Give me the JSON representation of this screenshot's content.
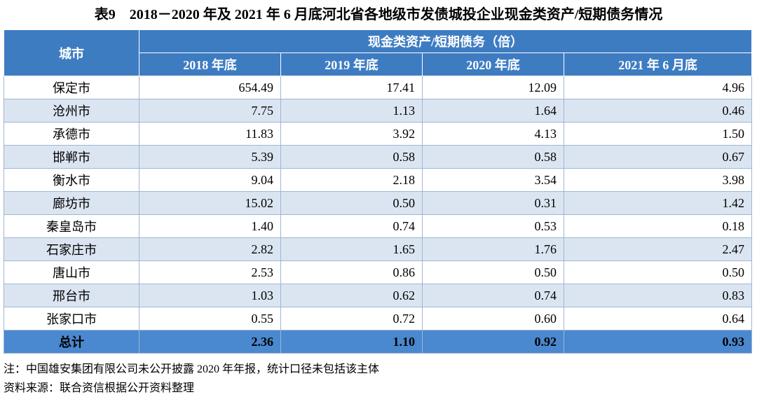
{
  "title": "表9　2018－2020 年及 2021 年 6 月底河北省各地级市发债城投企业现金类资产/短期债务情况",
  "table": {
    "header": {
      "city": "城市",
      "group": "现金类资产/短期债务（倍）",
      "years": [
        "2018 年底",
        "2019 年底",
        "2020 年底",
        "2021 年 6 月底"
      ]
    },
    "rows": [
      [
        "保定市",
        "654.49",
        "17.41",
        "12.09",
        "4.96"
      ],
      [
        "沧州市",
        "7.75",
        "1.13",
        "1.64",
        "0.46"
      ],
      [
        "承德市",
        "11.83",
        "3.92",
        "4.13",
        "1.50"
      ],
      [
        "邯郸市",
        "5.39",
        "0.58",
        "0.58",
        "0.67"
      ],
      [
        "衡水市",
        "9.04",
        "2.18",
        "3.54",
        "3.98"
      ],
      [
        "廊坊市",
        "15.02",
        "0.50",
        "0.31",
        "1.42"
      ],
      [
        "秦皇岛市",
        "1.40",
        "0.74",
        "0.53",
        "0.18"
      ],
      [
        "石家庄市",
        "2.82",
        "1.65",
        "1.76",
        "2.47"
      ],
      [
        "唐山市",
        "2.53",
        "0.86",
        "0.50",
        "0.50"
      ],
      [
        "邢台市",
        "1.03",
        "0.62",
        "0.74",
        "0.83"
      ],
      [
        "张家口市",
        "0.55",
        "0.72",
        "0.60",
        "0.64"
      ]
    ],
    "total": [
      "总计",
      "2.36",
      "1.10",
      "0.92",
      "0.93"
    ]
  },
  "notes": [
    "注：中国雄安集团有限公司未公开披露 2020 年年报，统计口径未包括该主体",
    "资料来源：联合资信根据公开资料整理"
  ]
}
